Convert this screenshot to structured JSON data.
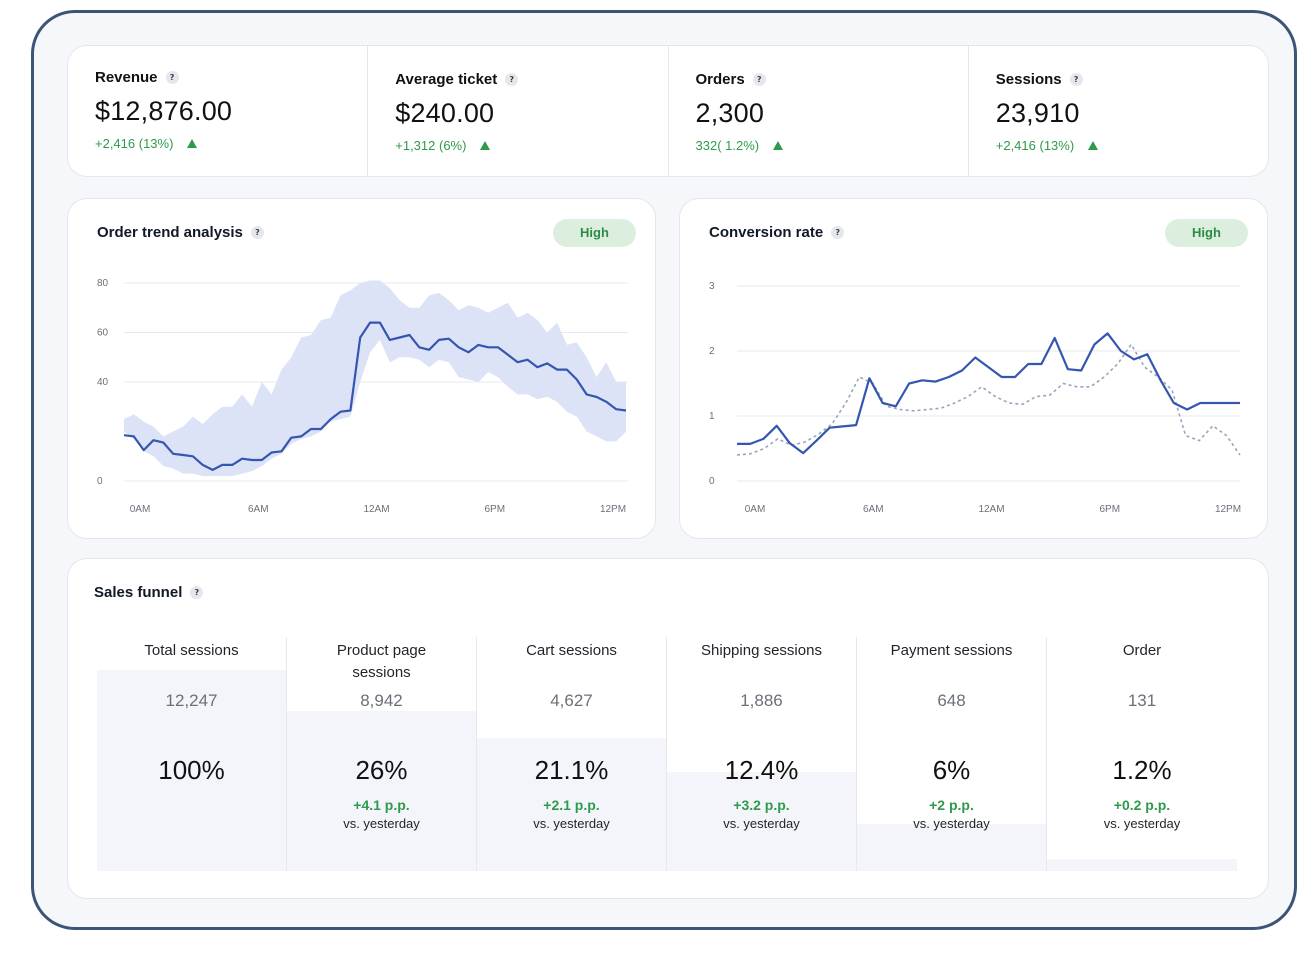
{
  "kpis": [
    {
      "label": "Revenue",
      "value": "$12,876.00",
      "delta": "+2,416 (13%)",
      "trend": "up"
    },
    {
      "label": "Average ticket",
      "value": "$240.00",
      "delta": "+1,312 (6%)",
      "trend": "up"
    },
    {
      "label": "Orders",
      "value": "2,300",
      "delta": "332( 1.2%)",
      "trend": "up"
    },
    {
      "label": "Sessions",
      "value": "23,910",
      "delta": "+2,416 (13%)",
      "trend": "up"
    }
  ],
  "help_glyph": "?",
  "colors": {
    "accent": "#3556b0",
    "positive": "#2e9b4c",
    "band": "#dce3f6",
    "badge_bg": "#dcefdf",
    "frame": "#3c5475"
  },
  "chart_data": [
    {
      "type": "area",
      "title": "Order trend analysis",
      "badge": "High",
      "x_ticks": [
        "0AM",
        "6AM",
        "12AM",
        "6PM",
        "12PM"
      ],
      "y_ticks": [
        "0",
        "40",
        "60",
        "80"
      ],
      "ylim": [
        0,
        80
      ],
      "grid": true,
      "series": [
        {
          "role": "line",
          "values": [
            18.5,
            18,
            12.5,
            16.5,
            15.5,
            11,
            10.5,
            10,
            6.5,
            4.5,
            6.5,
            6.5,
            9,
            8.5,
            8.5,
            11.5,
            12,
            17.5,
            18,
            21,
            21,
            25,
            28,
            28.5,
            58,
            64,
            64,
            57,
            58,
            59,
            54,
            53,
            57,
            57.5,
            54,
            52,
            55,
            54,
            54,
            51,
            48,
            49,
            46,
            47.5,
            45,
            45,
            41,
            35,
            34,
            32,
            29,
            28.5
          ]
        },
        {
          "role": "band_upper",
          "values": [
            25,
            27,
            24,
            22,
            18,
            20,
            22,
            26,
            23,
            27,
            30,
            30,
            35,
            30,
            40,
            35,
            45,
            50,
            58,
            59,
            65,
            66,
            75,
            77,
            80,
            81,
            81,
            78,
            73,
            70,
            70,
            75,
            76,
            73,
            69,
            71,
            70,
            68,
            70,
            72,
            66,
            68,
            65,
            60,
            64,
            55,
            56,
            50,
            42,
            48,
            40,
            40
          ]
        },
        {
          "role": "band_lower",
          "values": [
            20,
            17,
            12,
            10,
            6,
            5,
            3,
            3,
            2,
            2,
            2,
            2,
            3,
            4,
            6,
            9,
            11,
            15,
            17,
            18,
            20,
            24,
            25,
            26,
            40,
            52,
            57,
            48,
            50,
            50,
            49,
            46,
            49,
            48,
            42,
            41,
            40,
            44,
            42,
            38,
            35,
            35,
            33,
            34,
            32,
            28,
            26,
            20,
            18,
            16,
            16,
            20
          ]
        }
      ]
    },
    {
      "type": "line",
      "title": "Conversion rate",
      "badge": "High",
      "x_ticks": [
        "0AM",
        "6AM",
        "12AM",
        "6PM",
        "12PM"
      ],
      "y_ticks": [
        "0",
        "1",
        "2",
        "3"
      ],
      "ylim": [
        0,
        3
      ],
      "grid": true,
      "series": [
        {
          "role": "primary",
          "values": [
            0.57,
            0.57,
            0.65,
            0.85,
            0.58,
            0.43,
            0.62,
            0.82,
            0.84,
            0.86,
            1.58,
            1.2,
            1.15,
            1.5,
            1.55,
            1.53,
            1.6,
            1.7,
            1.9,
            1.75,
            1.6,
            1.6,
            1.8,
            1.8,
            2.2,
            1.72,
            1.7,
            2.1,
            2.27,
            2.0,
            1.87,
            1.95,
            1.55,
            1.2,
            1.1,
            1.2,
            1.2,
            1.2,
            1.2
          ]
        },
        {
          "role": "comparison",
          "values": [
            0.4,
            0.42,
            0.5,
            0.65,
            0.55,
            0.6,
            0.72,
            0.88,
            1.2,
            1.6,
            1.5,
            1.15,
            1.1,
            1.08,
            1.1,
            1.12,
            1.2,
            1.3,
            1.45,
            1.3,
            1.2,
            1.18,
            1.3,
            1.32,
            1.5,
            1.45,
            1.45,
            1.6,
            1.8,
            2.1,
            1.75,
            1.6,
            1.4,
            0.7,
            0.62,
            0.85,
            0.7,
            0.4
          ]
        }
      ]
    }
  ],
  "funnel": {
    "title": "Sales funnel",
    "delta_suffix": "vs. yesterday",
    "stages": [
      {
        "name": "Total sessions",
        "count": "12,247",
        "pct": "100%",
        "delta": "",
        "vs": "",
        "fill": 0.857
      },
      {
        "name": "Product page sessions",
        "count": "8,942",
        "pct": "26%",
        "delta": "+4.1 p.p.",
        "vs": "vs. yesterday",
        "fill": 0.684
      },
      {
        "name": "Cart sessions",
        "count": "4,627",
        "pct": "21.1%",
        "delta": "+2.1 p.p.",
        "vs": "vs. yesterday",
        "fill": 0.568
      },
      {
        "name": "Shipping sessions",
        "count": "1,886",
        "pct": "12.4%",
        "delta": "+3.2 p.p.",
        "vs": "vs. yesterday",
        "fill": 0.423
      },
      {
        "name": "Payment sessions",
        "count": "648",
        "pct": "6%",
        "delta": "+2 p.p.",
        "vs": "vs. yesterday",
        "fill": 0.201
      },
      {
        "name": "Order",
        "count": "131",
        "pct": "1.2%",
        "delta": "+0.2 p.p.",
        "vs": "vs. yesterday",
        "fill": 0.051
      }
    ]
  }
}
